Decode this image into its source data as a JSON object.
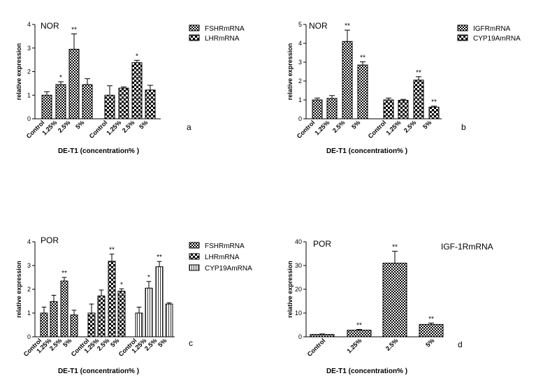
{
  "chart_data": [
    {
      "id": "a",
      "type": "bar",
      "panel_label": "a",
      "tag": "NOR",
      "ylabel": "relative expression",
      "xlabel": "DE-T1  (concentration% )",
      "ylim": [
        0,
        4
      ],
      "yticks": [
        0,
        1,
        2,
        3,
        4
      ],
      "categories": [
        "Control",
        "1.25%",
        "2.5%",
        "5%"
      ],
      "legend_position": "right",
      "series": [
        {
          "name": "FSHRmRNA",
          "pattern": "checker",
          "values": [
            1.0,
            1.45,
            2.95,
            1.45
          ],
          "errors": [
            0.15,
            0.12,
            0.65,
            0.25
          ],
          "sig": [
            "",
            "*",
            "**",
            ""
          ]
        },
        {
          "name": "LHRmRNA",
          "pattern": "brick",
          "values": [
            1.0,
            1.3,
            2.38,
            1.22
          ],
          "errors": [
            0.4,
            0.05,
            0.1,
            0.2
          ],
          "sig": [
            "",
            "",
            "*",
            ""
          ]
        }
      ]
    },
    {
      "id": "b",
      "type": "bar",
      "panel_label": "b",
      "tag": "NOR",
      "ylabel": "relative expression",
      "xlabel": "DE-T1  (concentration% )",
      "ylim": [
        0,
        5
      ],
      "yticks": [
        0,
        1,
        2,
        3,
        4,
        5
      ],
      "categories": [
        "Control",
        "1.25%",
        "2.5%",
        "5%"
      ],
      "legend_position": "right",
      "series": [
        {
          "name": "IGFRmRNA",
          "pattern": "checker",
          "values": [
            1.0,
            1.08,
            4.1,
            2.85
          ],
          "errors": [
            0.1,
            0.15,
            0.6,
            0.17
          ],
          "sig": [
            "",
            "",
            "**",
            "**"
          ]
        },
        {
          "name": "CYP19AmRNA",
          "pattern": "brick",
          "values": [
            1.0,
            0.98,
            2.05,
            0.62
          ],
          "errors": [
            0.1,
            0.05,
            0.18,
            0.05
          ],
          "sig": [
            "",
            "",
            "**",
            "**"
          ]
        }
      ]
    },
    {
      "id": "c",
      "type": "bar",
      "panel_label": "c",
      "tag": "POR",
      "ylabel": "relative expression",
      "xlabel": "DE-T1  (concentration% )",
      "ylim": [
        0,
        4
      ],
      "yticks": [
        0,
        1,
        2,
        3,
        4
      ],
      "categories": [
        "Control",
        "1.25%",
        "2.5%",
        "5%"
      ],
      "legend_position": "right",
      "series": [
        {
          "name": "FSHRmRNA",
          "pattern": "checker",
          "values": [
            1.0,
            1.48,
            2.35,
            0.92
          ],
          "errors": [
            0.25,
            0.27,
            0.15,
            0.2
          ],
          "sig": [
            "",
            "",
            "**",
            ""
          ]
        },
        {
          "name": "LHRmRNA",
          "pattern": "brick",
          "values": [
            1.0,
            1.72,
            3.18,
            1.92
          ],
          "errors": [
            0.38,
            0.25,
            0.3,
            0.1
          ],
          "sig": [
            "",
            "",
            "**",
            "*"
          ]
        },
        {
          "name": "CYP19AmRNA",
          "pattern": "vertical",
          "values": [
            1.0,
            2.05,
            2.95,
            1.38
          ],
          "errors": [
            0.25,
            0.28,
            0.22,
            0.05
          ],
          "sig": [
            "",
            "*",
            "**",
            ""
          ]
        }
      ]
    },
    {
      "id": "d",
      "type": "bar",
      "panel_label": "d",
      "tag": "POR",
      "title": "IGF-1RmRNA",
      "ylabel": "relative expression",
      "xlabel": "DE-T1  (concentration% )",
      "ylim": [
        0,
        40
      ],
      "yticks": [
        0,
        10,
        20,
        30,
        40
      ],
      "categories": [
        "Control",
        "1.25%",
        "2.5%",
        "5%"
      ],
      "series": [
        {
          "pattern": "checker",
          "values": [
            1.0,
            2.8,
            31.0,
            5.2
          ],
          "errors": [
            0.2,
            0.3,
            5.0,
            0.6
          ],
          "sig": [
            "",
            "**",
            "**",
            "**"
          ]
        }
      ]
    }
  ]
}
